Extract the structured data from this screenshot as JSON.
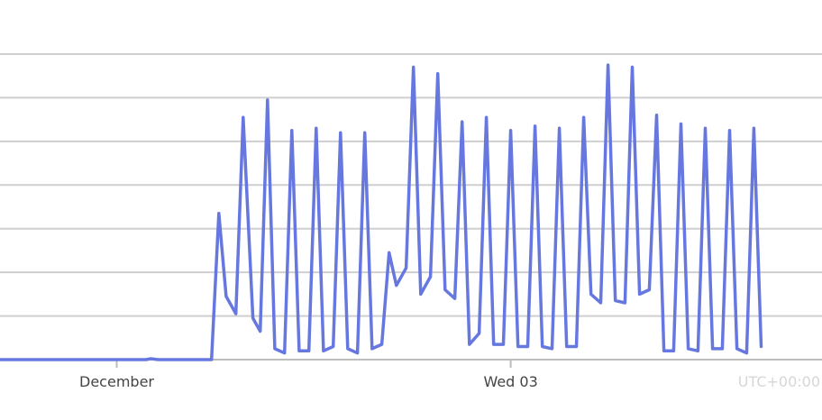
{
  "chart_data": {
    "type": "line",
    "title": "",
    "xlabel": "",
    "ylabel": "",
    "grid": true,
    "series_color": "#6678e0",
    "timezone_label": "UTC+00:00",
    "x_ticks": [
      {
        "x": 4.8,
        "label": "December"
      },
      {
        "x": 21.0,
        "label": "Wed 03"
      }
    ],
    "xlim": [
      0,
      33.8
    ],
    "ylim": [
      0,
      7
    ],
    "y_gridlines": [
      1,
      2,
      3,
      4,
      5,
      6,
      7
    ],
    "series": [
      {
        "values": [
          [
            0,
            0
          ],
          [
            6.0,
            0
          ],
          [
            6.2,
            0.02
          ],
          [
            6.5,
            0
          ],
          [
            8.7,
            0
          ],
          [
            9.0,
            3.35
          ],
          [
            9.3,
            1.45
          ],
          [
            9.7,
            1.05
          ],
          [
            10.0,
            5.55
          ],
          [
            10.4,
            0.95
          ],
          [
            10.7,
            0.65
          ],
          [
            11.0,
            5.95
          ],
          [
            11.3,
            0.25
          ],
          [
            11.7,
            0.15
          ],
          [
            12.0,
            5.25
          ],
          [
            12.3,
            0.2
          ],
          [
            12.7,
            0.2
          ],
          [
            13.0,
            5.3
          ],
          [
            13.3,
            0.2
          ],
          [
            13.7,
            0.3
          ],
          [
            14.0,
            5.2
          ],
          [
            14.3,
            0.25
          ],
          [
            14.7,
            0.15
          ],
          [
            15.0,
            5.2
          ],
          [
            15.3,
            0.25
          ],
          [
            15.7,
            0.35
          ],
          [
            16.0,
            2.45
          ],
          [
            16.3,
            1.7
          ],
          [
            16.7,
            2.1
          ],
          [
            17.0,
            6.7
          ],
          [
            17.3,
            1.5
          ],
          [
            17.7,
            1.9
          ],
          [
            18.0,
            6.55
          ],
          [
            18.3,
            1.6
          ],
          [
            18.7,
            1.4
          ],
          [
            19.0,
            5.45
          ],
          [
            19.3,
            0.35
          ],
          [
            19.7,
            0.6
          ],
          [
            20.0,
            5.55
          ],
          [
            20.3,
            0.35
          ],
          [
            20.7,
            0.35
          ],
          [
            21.0,
            5.25
          ],
          [
            21.3,
            0.3
          ],
          [
            21.7,
            0.3
          ],
          [
            22.0,
            5.35
          ],
          [
            22.3,
            0.3
          ],
          [
            22.7,
            0.25
          ],
          [
            23.0,
            5.3
          ],
          [
            23.3,
            0.3
          ],
          [
            23.7,
            0.3
          ],
          [
            24.0,
            5.55
          ],
          [
            24.3,
            1.5
          ],
          [
            24.7,
            1.3
          ],
          [
            25.0,
            6.75
          ],
          [
            25.3,
            1.35
          ],
          [
            25.7,
            1.3
          ],
          [
            26.0,
            6.7
          ],
          [
            26.3,
            1.5
          ],
          [
            26.7,
            1.6
          ],
          [
            27.0,
            5.6
          ],
          [
            27.3,
            0.2
          ],
          [
            27.7,
            0.2
          ],
          [
            28.0,
            5.4
          ],
          [
            28.3,
            0.25
          ],
          [
            28.7,
            0.2
          ],
          [
            29.0,
            5.3
          ],
          [
            29.3,
            0.25
          ],
          [
            29.7,
            0.25
          ],
          [
            30.0,
            5.25
          ],
          [
            30.3,
            0.25
          ],
          [
            30.7,
            0.15
          ],
          [
            31.0,
            5.3
          ],
          [
            31.3,
            0.3
          ]
        ]
      }
    ]
  }
}
